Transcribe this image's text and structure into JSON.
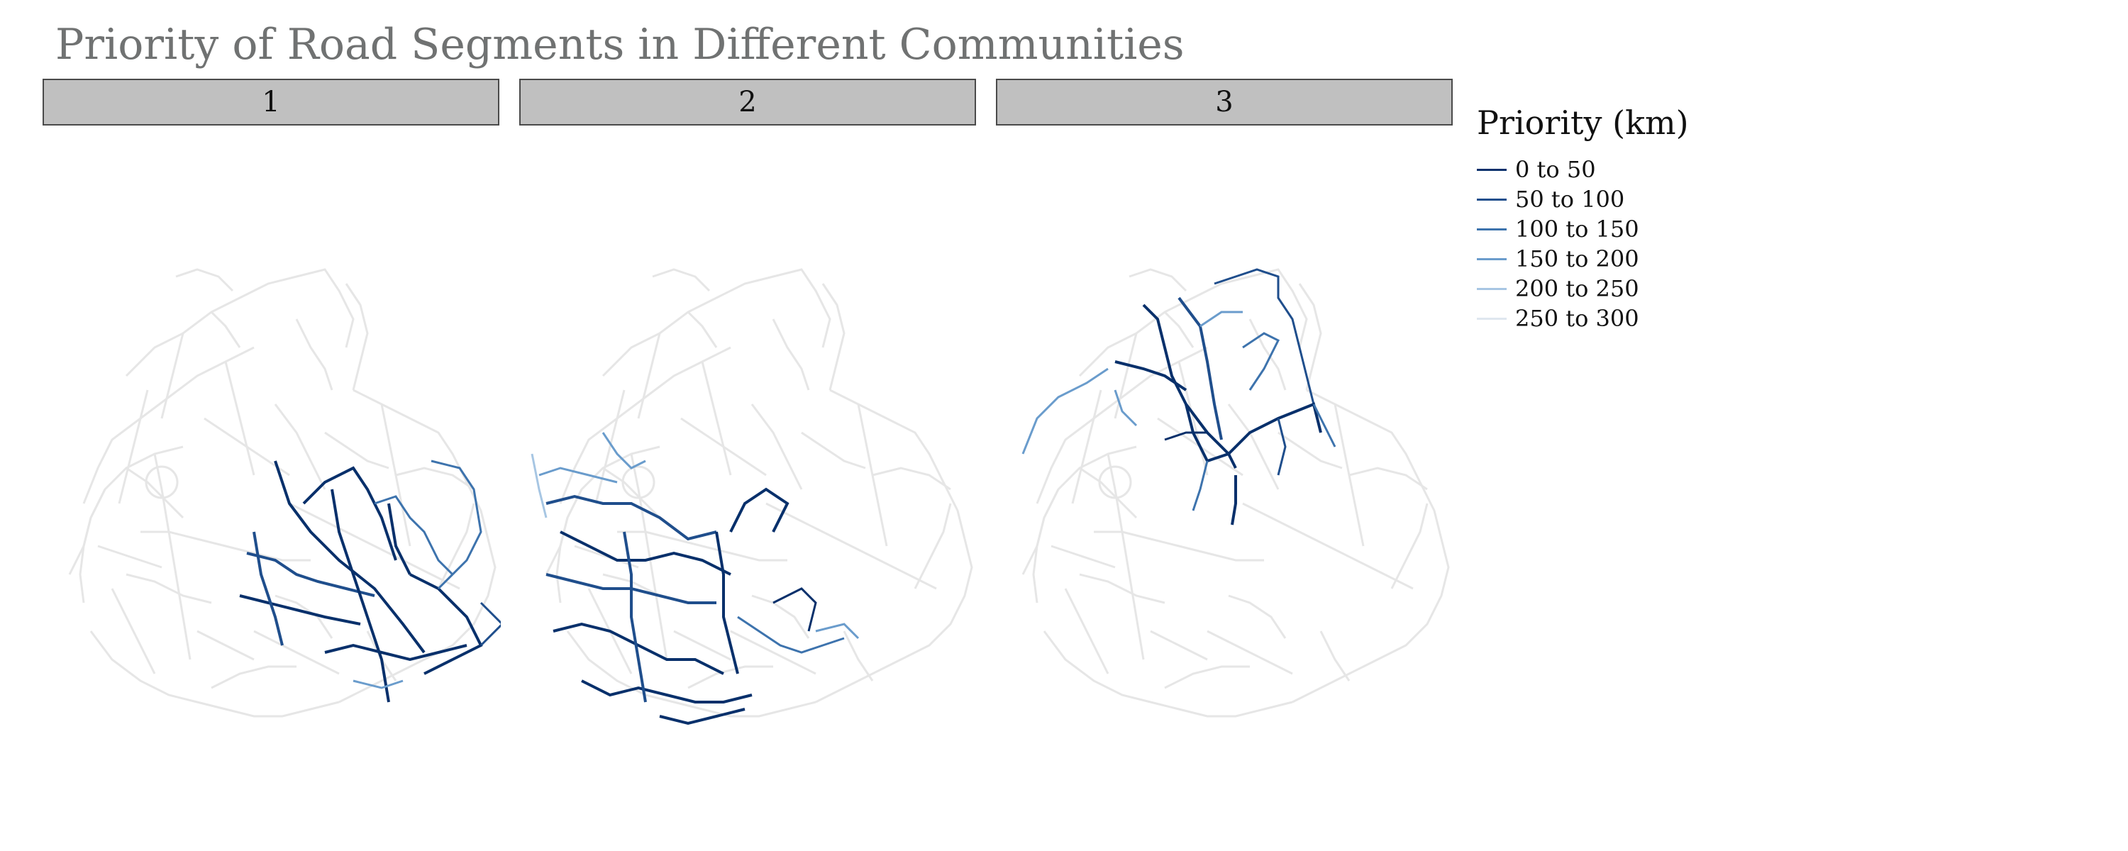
{
  "title": "Priority of Road Segments in Different Communities",
  "panels": [
    {
      "label": "1"
    },
    {
      "label": "2"
    },
    {
      "label": "3"
    }
  ],
  "legend": {
    "title": "Priority (km)",
    "items": [
      {
        "label": "0 to 50",
        "color": "#08306b"
      },
      {
        "label": "50 to 100",
        "color": "#1f4e8c"
      },
      {
        "label": "100 to 150",
        "color": "#3d73ad"
      },
      {
        "label": "150 to 200",
        "color": "#6a9ccc"
      },
      {
        "label": "200 to 250",
        "color": "#a7c6e3"
      },
      {
        "label": "250 to 300",
        "color": "#dfe7ef"
      }
    ]
  },
  "colors": {
    "background_roads": "#e6e6e6",
    "strip_fill": "#c0c0c0",
    "title": "#707272"
  }
}
